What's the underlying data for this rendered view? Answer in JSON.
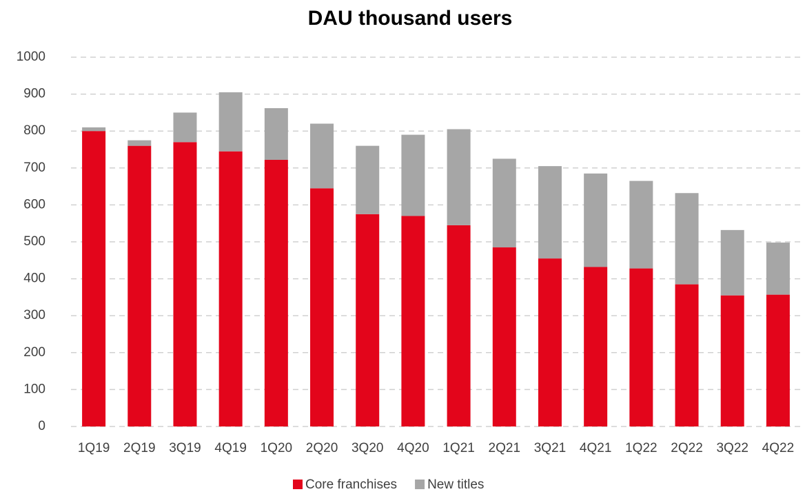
{
  "chart_data": {
    "type": "bar",
    "stacked": true,
    "title": "DAU thousand users",
    "categories": [
      "1Q19",
      "2Q19",
      "3Q19",
      "4Q19",
      "1Q20",
      "2Q20",
      "3Q20",
      "4Q20",
      "1Q21",
      "2Q21",
      "3Q21",
      "4Q21",
      "1Q22",
      "2Q22",
      "3Q22",
      "4Q22"
    ],
    "series": [
      {
        "name": "Core franchises",
        "color": "#e3051b",
        "values": [
          800,
          760,
          770,
          745,
          722,
          645,
          575,
          570,
          545,
          485,
          455,
          432,
          428,
          385,
          355,
          357
        ]
      },
      {
        "name": "New titles",
        "color": "#a6a6a6",
        "values": [
          10,
          15,
          80,
          160,
          140,
          175,
          185,
          220,
          260,
          240,
          250,
          253,
          237,
          247,
          177,
          141
        ]
      }
    ],
    "ylim": [
      0,
      1000
    ],
    "yticks": [
      0,
      100,
      200,
      300,
      400,
      500,
      600,
      700,
      800,
      900,
      1000
    ],
    "grid": true,
    "legend": "bottom"
  }
}
